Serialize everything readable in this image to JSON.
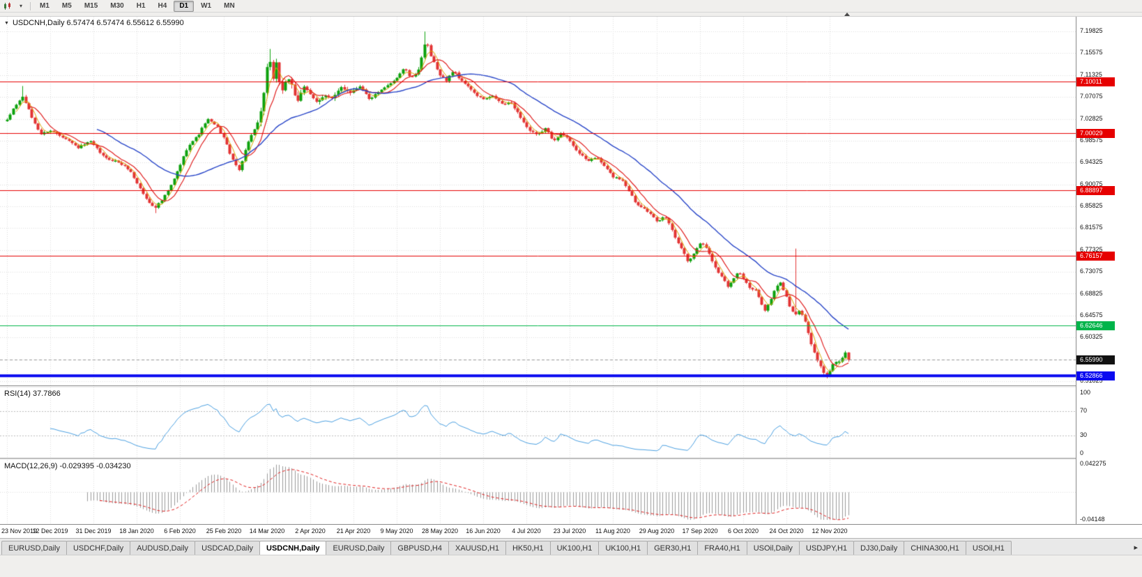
{
  "toolbar": {
    "timeframes": [
      {
        "label": "M1",
        "active": false
      },
      {
        "label": "M5",
        "active": false
      },
      {
        "label": "M15",
        "active": false
      },
      {
        "label": "M30",
        "active": false
      },
      {
        "label": "H1",
        "active": false
      },
      {
        "label": "H4",
        "active": false
      },
      {
        "label": "D1",
        "active": true
      },
      {
        "label": "W1",
        "active": false
      },
      {
        "label": "MN",
        "active": false
      }
    ],
    "chart_type_dropdown_icon": "▾"
  },
  "chart": {
    "header": "USDCNH,Daily 6.57474 6.57474 6.55612 6.55990",
    "symbol": "USDCNH",
    "period": "Daily",
    "open": "6.57474",
    "high": "6.57474",
    "low": "6.55612",
    "close": "6.55990",
    "collapse_icon": "▼"
  },
  "rsi": {
    "header": "RSI(14) 37.7866",
    "value": "37.7866"
  },
  "macd": {
    "header": "MACD(12,26,9) -0.029395 -0.034230",
    "macd_value": "-0.029395",
    "signal_value": "-0.034230"
  },
  "tabs": {
    "scroll_right_icon": "▸",
    "items": [
      {
        "label": "EURUSD,Daily",
        "active": false
      },
      {
        "label": "USDCHF,Daily",
        "active": false
      },
      {
        "label": "AUDUSD,Daily",
        "active": false
      },
      {
        "label": "USDCAD,Daily",
        "active": false
      },
      {
        "label": "USDCNH,Daily",
        "active": true
      },
      {
        "label": "EURUSD,Daily",
        "active": false
      },
      {
        "label": "GBPUSD,H4",
        "active": false
      },
      {
        "label": "XAUUSD,H1",
        "active": false
      },
      {
        "label": "HK50,H1",
        "active": false
      },
      {
        "label": "UK100,H1",
        "active": false
      },
      {
        "label": "UK100,H1",
        "active": false
      },
      {
        "label": "GER30,H1",
        "active": false
      },
      {
        "label": "FRA40,H1",
        "active": false
      },
      {
        "label": "USOil,Daily",
        "active": false
      },
      {
        "label": "USDJPY,H1",
        "active": false
      },
      {
        "label": "DJ30,Daily",
        "active": false
      },
      {
        "label": "CHINA300,H1",
        "active": false
      },
      {
        "label": "USOil,H1",
        "active": false
      }
    ]
  },
  "colors": {
    "bull": "#0da10d",
    "bear": "#e33434",
    "grid": "#dcdcdc",
    "ma_fast": "#d9a800",
    "ma_mid": "#e02020",
    "ma_slow": "#2946c8",
    "rsi_line": "#4a9fe0",
    "rsi_levels": "#bbbbbb",
    "macd_hist": "#9a9a9a",
    "macd_signal": "#e02020",
    "current_price_line": "#999999",
    "current_badge": "#111111"
  },
  "chart_data": {
    "type": "candlestick",
    "title": "USDCNH Daily with RSI(14) and MACD(12,26,9)",
    "price_axis_range": [
      6.51825,
      7.19825
    ],
    "price_axis_ticks": [
      "7.19825",
      "7.15575",
      "7.11325",
      "7.07075",
      "7.02825",
      "6.98575",
      "6.94325",
      "6.90075",
      "6.85825",
      "6.81575",
      "6.77325",
      "6.73075",
      "6.68825",
      "6.64575",
      "6.60325",
      "6.56075",
      "6.51825"
    ],
    "dates": [
      "23 Nov 2019",
      "12 Dec 2019",
      "31 Dec 2019",
      "18 Jan 2020",
      "6 Feb 2020",
      "25 Feb 2020",
      "14 Mar 2020",
      "2 Apr 2020",
      "21 Apr 2020",
      "9 May 2020",
      "28 May 2020",
      "16 Jun 2020",
      "4 Jul 2020",
      "23 Jul 2020",
      "11 Aug 2020",
      "29 Aug 2020",
      "17 Sep 2020",
      "6 Oct 2020",
      "24 Oct 2020",
      "12 Nov 2020"
    ],
    "num_candles": 273,
    "candles_per_date_grid": 14,
    "close_keypoints": [
      [
        0,
        7.025
      ],
      [
        0.008,
        7.05
      ],
      [
        0.019,
        7.072
      ],
      [
        0.029,
        7.032
      ],
      [
        0.04,
        6.998
      ],
      [
        0.051,
        7.006
      ],
      [
        0.07,
        6.99
      ],
      [
        0.084,
        6.972
      ],
      [
        0.099,
        6.984
      ],
      [
        0.116,
        6.952
      ],
      [
        0.131,
        6.945
      ],
      [
        0.145,
        6.93
      ],
      [
        0.157,
        6.896
      ],
      [
        0.167,
        6.868
      ],
      [
        0.176,
        6.856
      ],
      [
        0.185,
        6.872
      ],
      [
        0.196,
        6.902
      ],
      [
        0.205,
        6.936
      ],
      [
        0.215,
        6.976
      ],
      [
        0.227,
        6.996
      ],
      [
        0.238,
        7.028
      ],
      [
        0.25,
        7.012
      ],
      [
        0.258,
        6.99
      ],
      [
        0.268,
        6.948
      ],
      [
        0.276,
        6.928
      ],
      [
        0.283,
        6.968
      ],
      [
        0.291,
        7.0
      ],
      [
        0.3,
        7.022
      ],
      [
        0.306,
        7.088
      ],
      [
        0.311,
        7.155
      ],
      [
        0.315,
        7.1
      ],
      [
        0.32,
        7.138
      ],
      [
        0.326,
        7.076
      ],
      [
        0.332,
        7.108
      ],
      [
        0.339,
        7.088
      ],
      [
        0.345,
        7.062
      ],
      [
        0.352,
        7.094
      ],
      [
        0.359,
        7.076
      ],
      [
        0.368,
        7.06
      ],
      [
        0.377,
        7.076
      ],
      [
        0.387,
        7.066
      ],
      [
        0.397,
        7.09
      ],
      [
        0.409,
        7.08
      ],
      [
        0.42,
        7.094
      ],
      [
        0.43,
        7.066
      ],
      [
        0.442,
        7.08
      ],
      [
        0.453,
        7.094
      ],
      [
        0.463,
        7.108
      ],
      [
        0.472,
        7.128
      ],
      [
        0.48,
        7.106
      ],
      [
        0.488,
        7.12
      ],
      [
        0.498,
        7.18
      ],
      [
        0.504,
        7.148
      ],
      [
        0.512,
        7.12
      ],
      [
        0.522,
        7.102
      ],
      [
        0.531,
        7.124
      ],
      [
        0.539,
        7.102
      ],
      [
        0.547,
        7.094
      ],
      [
        0.556,
        7.076
      ],
      [
        0.566,
        7.066
      ],
      [
        0.578,
        7.072
      ],
      [
        0.589,
        7.056
      ],
      [
        0.599,
        7.06
      ],
      [
        0.61,
        7.032
      ],
      [
        0.62,
        7.006
      ],
      [
        0.63,
        6.996
      ],
      [
        0.64,
        7.01
      ],
      [
        0.649,
        6.986
      ],
      [
        0.659,
        7.0
      ],
      [
        0.669,
        6.986
      ],
      [
        0.679,
        6.962
      ],
      [
        0.69,
        6.946
      ],
      [
        0.7,
        6.954
      ],
      [
        0.71,
        6.936
      ],
      [
        0.72,
        6.916
      ],
      [
        0.731,
        6.91
      ],
      [
        0.74,
        6.886
      ],
      [
        0.748,
        6.862
      ],
      [
        0.757,
        6.856
      ],
      [
        0.765,
        6.842
      ],
      [
        0.773,
        6.826
      ],
      [
        0.781,
        6.84
      ],
      [
        0.789,
        6.82
      ],
      [
        0.796,
        6.79
      ],
      [
        0.804,
        6.772
      ],
      [
        0.81,
        6.748
      ],
      [
        0.818,
        6.772
      ],
      [
        0.825,
        6.79
      ],
      [
        0.833,
        6.772
      ],
      [
        0.841,
        6.742
      ],
      [
        0.849,
        6.722
      ],
      [
        0.857,
        6.702
      ],
      [
        0.863,
        6.718
      ],
      [
        0.87,
        6.732
      ],
      [
        0.877,
        6.712
      ],
      [
        0.883,
        6.698
      ],
      [
        0.89,
        6.694
      ],
      [
        0.896,
        6.672
      ],
      [
        0.901,
        6.656
      ],
      [
        0.907,
        6.674
      ],
      [
        0.913,
        6.698
      ],
      [
        0.919,
        6.71
      ],
      [
        0.926,
        6.684
      ],
      [
        0.931,
        6.66
      ],
      [
        0.937,
        6.648
      ],
      [
        0.943,
        6.656
      ],
      [
        0.949,
        6.632
      ],
      [
        0.954,
        6.6
      ],
      [
        0.96,
        6.572
      ],
      [
        0.966,
        6.548
      ],
      [
        0.972,
        6.532
      ],
      [
        0.976,
        6.528
      ],
      [
        0.98,
        6.546
      ],
      [
        0.984,
        6.56
      ],
      [
        0.988,
        6.552
      ],
      [
        0.993,
        6.565
      ],
      [
        0.996,
        6.5747
      ],
      [
        1,
        6.5599
      ]
    ],
    "spikes": [
      {
        "f": 0.019,
        "high": 7.092
      },
      {
        "f": 0.176,
        "low": 6.845
      },
      {
        "f": 0.311,
        "high": 7.164
      },
      {
        "f": 0.498,
        "high": 7.198
      },
      {
        "f": 0.937,
        "high": 6.776
      },
      {
        "f": 0.976,
        "low": 6.5237
      }
    ],
    "hlines": [
      {
        "price": 7.10011,
        "label": "7.10011",
        "color": "#e60000",
        "width": 1
      },
      {
        "price": 7.00029,
        "label": "7.00029",
        "color": "#e60000",
        "width": 1
      },
      {
        "price": 6.88897,
        "label": "6.88897",
        "color": "#e60000",
        "width": 1
      },
      {
        "price": 6.76157,
        "label": "6.76157",
        "color": "#e60000",
        "width": 1
      },
      {
        "price": 6.62646,
        "label": "6.62646",
        "color": "#00b44a",
        "width": 1
      },
      {
        "price": 6.52866,
        "label": "6.52866",
        "color": "#0a0af0",
        "width": 4
      }
    ],
    "current_price": {
      "value": 6.5599,
      "label": "6.55990"
    },
    "moving_averages": [
      {
        "period": 4,
        "color": "#d9a800",
        "width": 1
      },
      {
        "period": 8,
        "color": "#e02020",
        "width": 1.2
      },
      {
        "period": 30,
        "color": "#2946c8",
        "width": 1.4
      }
    ],
    "indicators": {
      "rsi": {
        "period": 14,
        "current": 37.7866,
        "range": [
          0,
          100
        ],
        "levels": [
          70,
          30
        ],
        "axis": [
          {
            "value": 100,
            "label": "100"
          },
          {
            "value": 70,
            "label": "70"
          },
          {
            "value": 30,
            "label": "30"
          },
          {
            "value": 0,
            "label": "0"
          }
        ]
      },
      "macd": {
        "fast": 12,
        "slow": 26,
        "signal": 9,
        "current": -0.029395,
        "current_signal": -0.03423,
        "axis_max": 0.042275,
        "axis_min": -0.04148,
        "axis": [
          {
            "value": 0.042275,
            "label": "0.042275"
          },
          {
            "value": -0.04148,
            "label": "-0.04148"
          }
        ]
      }
    }
  }
}
